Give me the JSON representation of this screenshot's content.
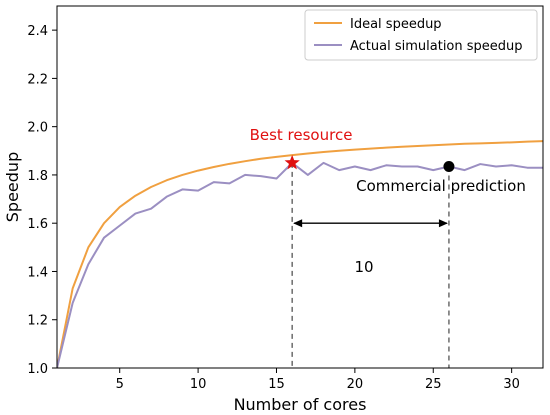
{
  "chart_data": {
    "type": "line",
    "title": "",
    "xlabel": "Number of cores",
    "ylabel": "Speedup",
    "xlim": [
      1,
      32
    ],
    "ylim": [
      1.0,
      2.5
    ],
    "xticks": [
      5,
      10,
      15,
      20,
      25,
      30
    ],
    "yticks": [
      1.0,
      1.2,
      1.4,
      1.6,
      1.8,
      2.0,
      2.2,
      2.4
    ],
    "grid": false,
    "legend": "top-right",
    "x": [
      1,
      2,
      3,
      4,
      5,
      6,
      7,
      8,
      9,
      10,
      11,
      12,
      13,
      14,
      15,
      16,
      17,
      18,
      19,
      20,
      21,
      22,
      23,
      24,
      25,
      26,
      27,
      28,
      29,
      30,
      31,
      32
    ],
    "series": [
      {
        "name": "Ideal speedup",
        "color": "#f0a040",
        "values": [
          1.0,
          1.33,
          1.5,
          1.6,
          1.667,
          1.714,
          1.75,
          1.778,
          1.8,
          1.818,
          1.833,
          1.846,
          1.857,
          1.867,
          1.875,
          1.882,
          1.889,
          1.895,
          1.9,
          1.905,
          1.909,
          1.913,
          1.917,
          1.92,
          1.923,
          1.926,
          1.929,
          1.931,
          1.933,
          1.935,
          1.938,
          1.94
        ]
      },
      {
        "name": "Actual simulation speedup",
        "color": "#9b8fc2",
        "values": [
          1.0,
          1.27,
          1.43,
          1.54,
          1.59,
          1.64,
          1.66,
          1.71,
          1.74,
          1.735,
          1.77,
          1.765,
          1.8,
          1.795,
          1.785,
          1.85,
          1.8,
          1.85,
          1.82,
          1.835,
          1.82,
          1.84,
          1.835,
          1.835,
          1.82,
          1.835,
          1.82,
          1.845,
          1.835,
          1.84,
          1.83,
          1.83
        ]
      }
    ],
    "annotations": {
      "best": {
        "text": "Best resource",
        "x": 16,
        "y": 1.85,
        "color": "#e01010"
      },
      "commercial": {
        "text": "Commercial prediction",
        "x": 26,
        "y": 1.835,
        "color": "#000000"
      },
      "gap": {
        "text": "10",
        "x_start": 16,
        "x_end": 26,
        "y": 1.6
      }
    }
  }
}
